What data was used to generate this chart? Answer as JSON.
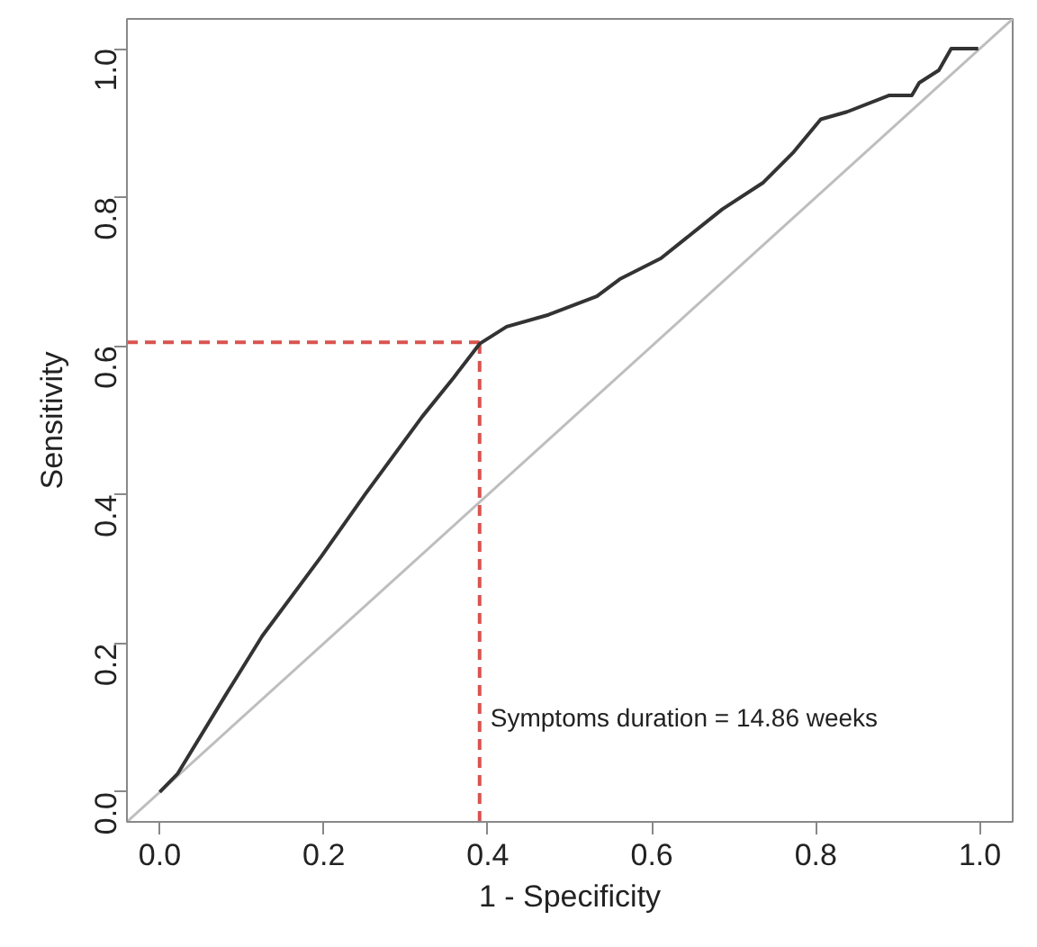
{
  "chart_data": {
    "type": "line",
    "xlabel": "1 - Specificity",
    "ylabel": "Sensitivity",
    "xlim": [
      -0.04,
      1.04
    ],
    "ylim": [
      -0.04,
      1.04
    ],
    "xticks": [
      {
        "value": 0,
        "label": "0.0"
      },
      0.2,
      0.4,
      0.6,
      0.8,
      {
        "value": 1,
        "label": "1.0"
      }
    ],
    "yticks": [
      {
        "value": 0,
        "label": "0.0"
      },
      0.2,
      0.4,
      0.6,
      0.8,
      {
        "value": 1,
        "label": "1.0"
      }
    ],
    "grid": false,
    "marker": "none",
    "line_style": "solid",
    "series": [
      {
        "color": "#bebebe",
        "x": [
          -0.04,
          1.04
        ],
        "values": [
          -0.04,
          1.04
        ]
      },
      {
        "color": "#333333",
        "x": [
          0,
          0.022,
          0.08,
          0.125,
          0.197,
          0.25,
          0.27,
          0.32,
          0.358,
          0.39,
          0.423,
          0.474,
          0.533,
          0.561,
          0.611,
          0.686,
          0.736,
          0.773,
          0.806,
          0.838,
          0.889,
          0.917,
          0.926,
          0.95,
          0.965,
          0.998
        ],
        "values": [
          0,
          0.025,
          0.13,
          0.21,
          0.317,
          0.4,
          0.43,
          0.505,
          0.557,
          0.603,
          0.626,
          0.642,
          0.667,
          0.69,
          0.718,
          0.784,
          0.82,
          0.861,
          0.905,
          0.915,
          0.937,
          0.937,
          0.954,
          0.971,
          1.0,
          1.0
        ]
      }
    ],
    "ref_lines": [
      {
        "axis": "x",
        "value": 0.39,
        "color": "#d9534f",
        "line_style": "dashed"
      },
      {
        "axis": "y",
        "value": 0.605,
        "color": "#d9534f",
        "line_style": "dashed"
      }
    ],
    "annotations": [
      {
        "text": "Symptoms duration = 14.86 weeks",
        "x": 0.39,
        "y": 0.1
      }
    ]
  }
}
